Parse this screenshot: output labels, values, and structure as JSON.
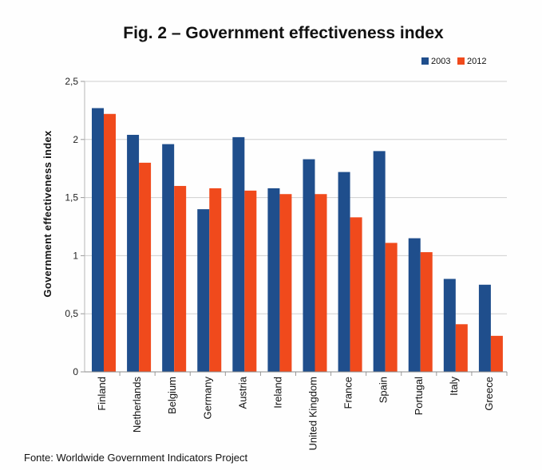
{
  "chart_data": {
    "type": "bar",
    "title": "Fig. 2 – Government effectiveness index",
    "ylabel": "Government effectiveness index",
    "xlabel": "",
    "ylim": [
      0,
      2.5
    ],
    "yticks": [
      0,
      0.5,
      1,
      1.5,
      2,
      2.5
    ],
    "ytick_labels": [
      "0",
      "0,5",
      "1",
      "1,5",
      "2",
      "2,5"
    ],
    "grid": true,
    "legend_position": "top-right",
    "categories": [
      "Finland",
      "Netherlands",
      "Belgium",
      "Germany",
      "Austria",
      "Ireland",
      "United Kingdom",
      "France",
      "Spain",
      "Portugal",
      "Italy",
      "Greece"
    ],
    "series": [
      {
        "name": "2003",
        "color": "#1f4e8c",
        "values": [
          2.27,
          2.04,
          1.96,
          1.4,
          2.02,
          1.58,
          1.83,
          1.72,
          1.9,
          1.15,
          0.8,
          0.75
        ]
      },
      {
        "name": "2012",
        "color": "#f04a1c",
        "values": [
          2.22,
          1.8,
          1.6,
          1.58,
          1.56,
          1.53,
          1.53,
          1.33,
          1.11,
          1.03,
          0.41,
          0.31
        ]
      }
    ],
    "source": "Fonte: Worldwide Government Indicators Project"
  }
}
